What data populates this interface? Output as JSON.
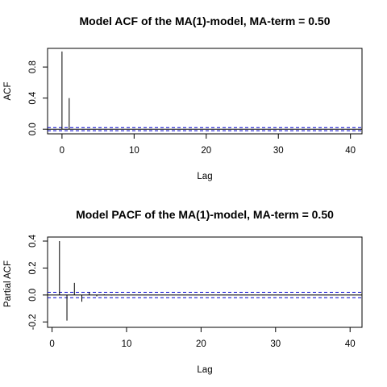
{
  "chart_data": [
    {
      "type": "bar",
      "title": "Model ACF of the MA(1)-model, MA-term = 0.50",
      "xlabel": "Lag",
      "ylabel": "ACF",
      "xlim": [
        -2,
        41.6
      ],
      "ylim": [
        -0.06,
        1.04
      ],
      "xticks": [
        0,
        10,
        20,
        30,
        40
      ],
      "yticks": [
        0.0,
        0.4,
        0.8
      ],
      "ytick_labels": [
        "0.0",
        "0.4",
        "0.8"
      ],
      "confidence_bound": 0.02,
      "x": [
        0,
        1,
        2,
        3,
        4,
        5,
        6,
        7,
        8,
        9,
        10,
        11,
        12,
        13,
        14,
        15,
        16,
        17,
        18,
        19,
        20,
        21,
        22,
        23,
        24,
        25,
        26,
        27,
        28,
        29,
        30,
        31,
        32,
        33,
        34,
        35,
        36,
        37,
        38,
        39,
        40
      ],
      "values": [
        1.0,
        0.4,
        0,
        0,
        0,
        0,
        0,
        0,
        0,
        0,
        0,
        0,
        0,
        0,
        0,
        0,
        0,
        0,
        0,
        0,
        0,
        0,
        0,
        0,
        0,
        0,
        0,
        0,
        0,
        0,
        0,
        0,
        0,
        0,
        0,
        0,
        0,
        0,
        0,
        0,
        0
      ]
    },
    {
      "type": "bar",
      "title": "Model PACF of the MA(1)-model, MA-term = 0.50",
      "xlabel": "Lag",
      "ylabel": "Partial ACF",
      "xlim": [
        -0.6,
        41.6
      ],
      "ylim": [
        -0.24,
        0.43
      ],
      "xticks": [
        0,
        10,
        20,
        30,
        40
      ],
      "yticks": [
        -0.2,
        0.0,
        0.2,
        0.4
      ],
      "ytick_labels": [
        "-0.2",
        "0.0",
        "0.2",
        "0.4"
      ],
      "confidence_bound": 0.02,
      "x": [
        1,
        2,
        3,
        4,
        5,
        6,
        7,
        8,
        9,
        10,
        11,
        12,
        13,
        14,
        15,
        16,
        17,
        18,
        19,
        20,
        21,
        22,
        23,
        24,
        25,
        26,
        27,
        28,
        29,
        30,
        31,
        32,
        33,
        34,
        35,
        36,
        37,
        38,
        39,
        40
      ],
      "values": [
        0.4,
        -0.19,
        0.09,
        -0.05,
        0.02,
        -0.01,
        0.005,
        -0.003,
        0,
        0,
        0,
        0,
        0,
        0,
        0,
        0,
        0,
        0,
        0,
        0,
        0,
        0,
        0,
        0,
        0,
        0,
        0,
        0,
        0,
        0,
        0,
        0,
        0,
        0,
        0,
        0,
        0,
        0,
        0,
        0
      ]
    }
  ],
  "colors": {
    "bars": "#000000",
    "confidence": "#0000cc",
    "axes": "#000000"
  }
}
